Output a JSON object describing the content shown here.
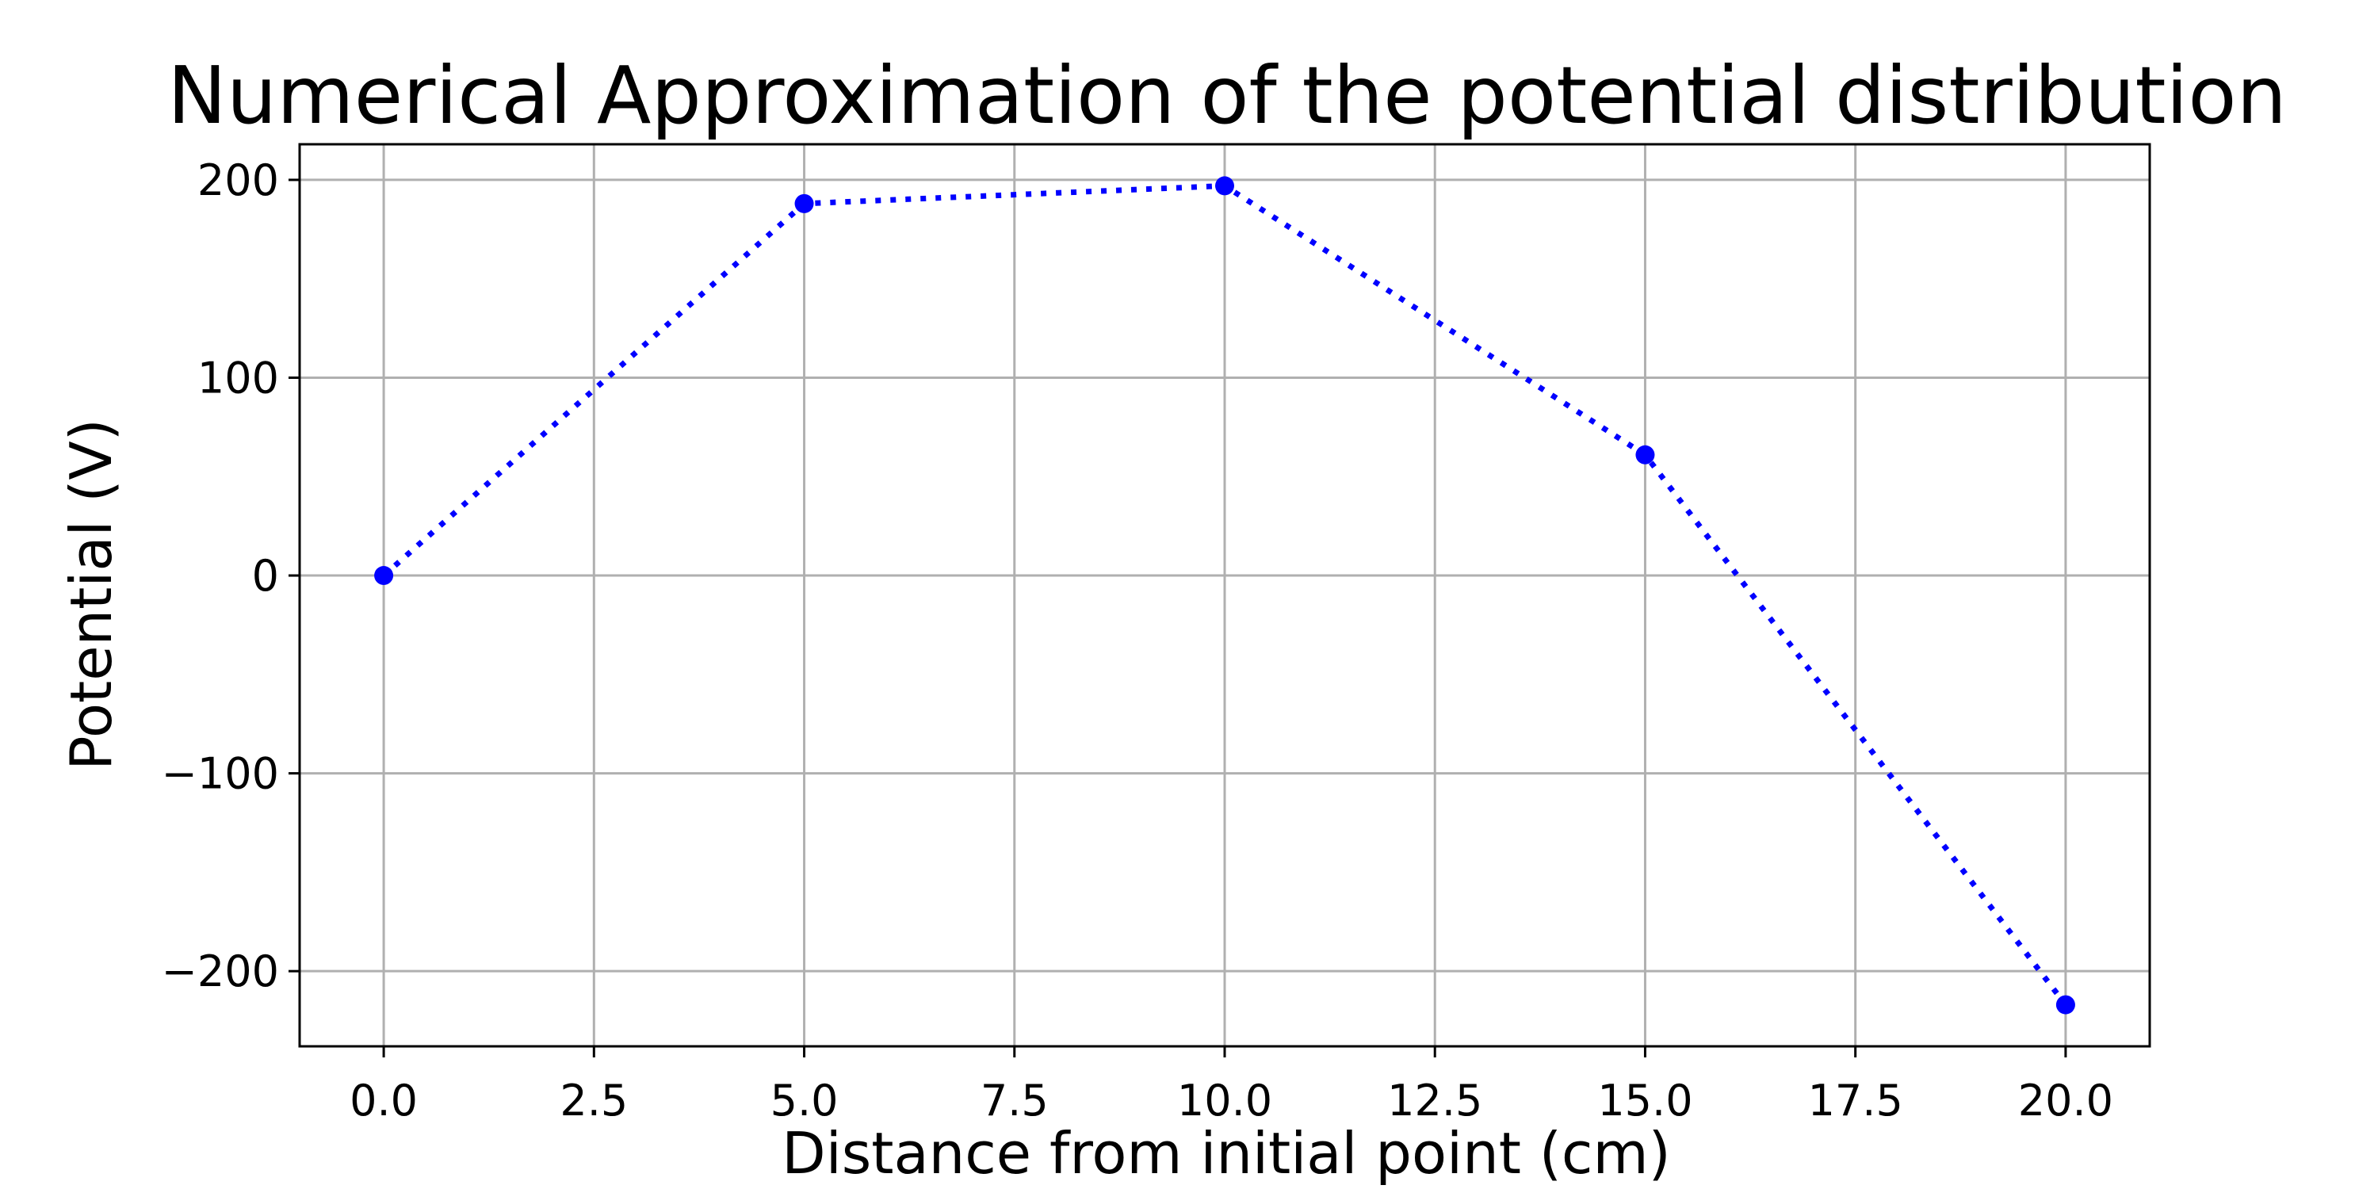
{
  "chart_data": {
    "type": "line",
    "title": "Numerical Approximation of the potential distribution",
    "xlabel": "Distance from initial point (cm)",
    "ylabel": "Potential (V)",
    "x": [
      0,
      5,
      10,
      15,
      20
    ],
    "series": [
      {
        "values": [
          0,
          188,
          197,
          61,
          -217
        ],
        "color": "#0000ff",
        "line_style": "dotted",
        "marker": "circle"
      }
    ],
    "xlim": [
      -1,
      21
    ],
    "ylim": [
      -238,
      218
    ],
    "xticks": [
      0,
      2.5,
      5,
      7.5,
      10,
      12.5,
      15,
      17.5,
      20
    ],
    "xtick_labels": [
      "0.0",
      "2.5",
      "5.0",
      "7.5",
      "10.0",
      "12.5",
      "15.0",
      "17.5",
      "20.0"
    ],
    "yticks": [
      -200,
      -100,
      0,
      100,
      200
    ],
    "ytick_labels": [
      "−200",
      "−100",
      "0",
      "100",
      "200"
    ],
    "grid": true,
    "grid_color": "#b0b0b0"
  }
}
